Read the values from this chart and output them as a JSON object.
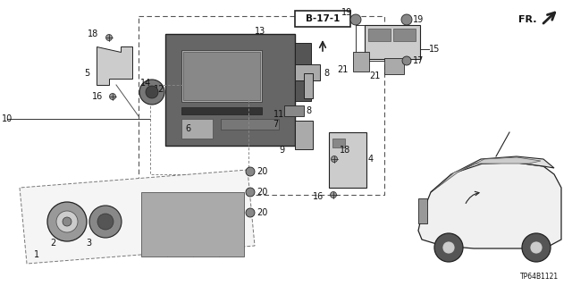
{
  "bg_color": "#ffffff",
  "part_label": "B-17-1",
  "diagram_code": "TP64B1121",
  "fr_label": "FR.",
  "line_color": "#333333",
  "dark_color": "#222222",
  "mid_gray": "#777777",
  "light_gray": "#aaaaaa"
}
